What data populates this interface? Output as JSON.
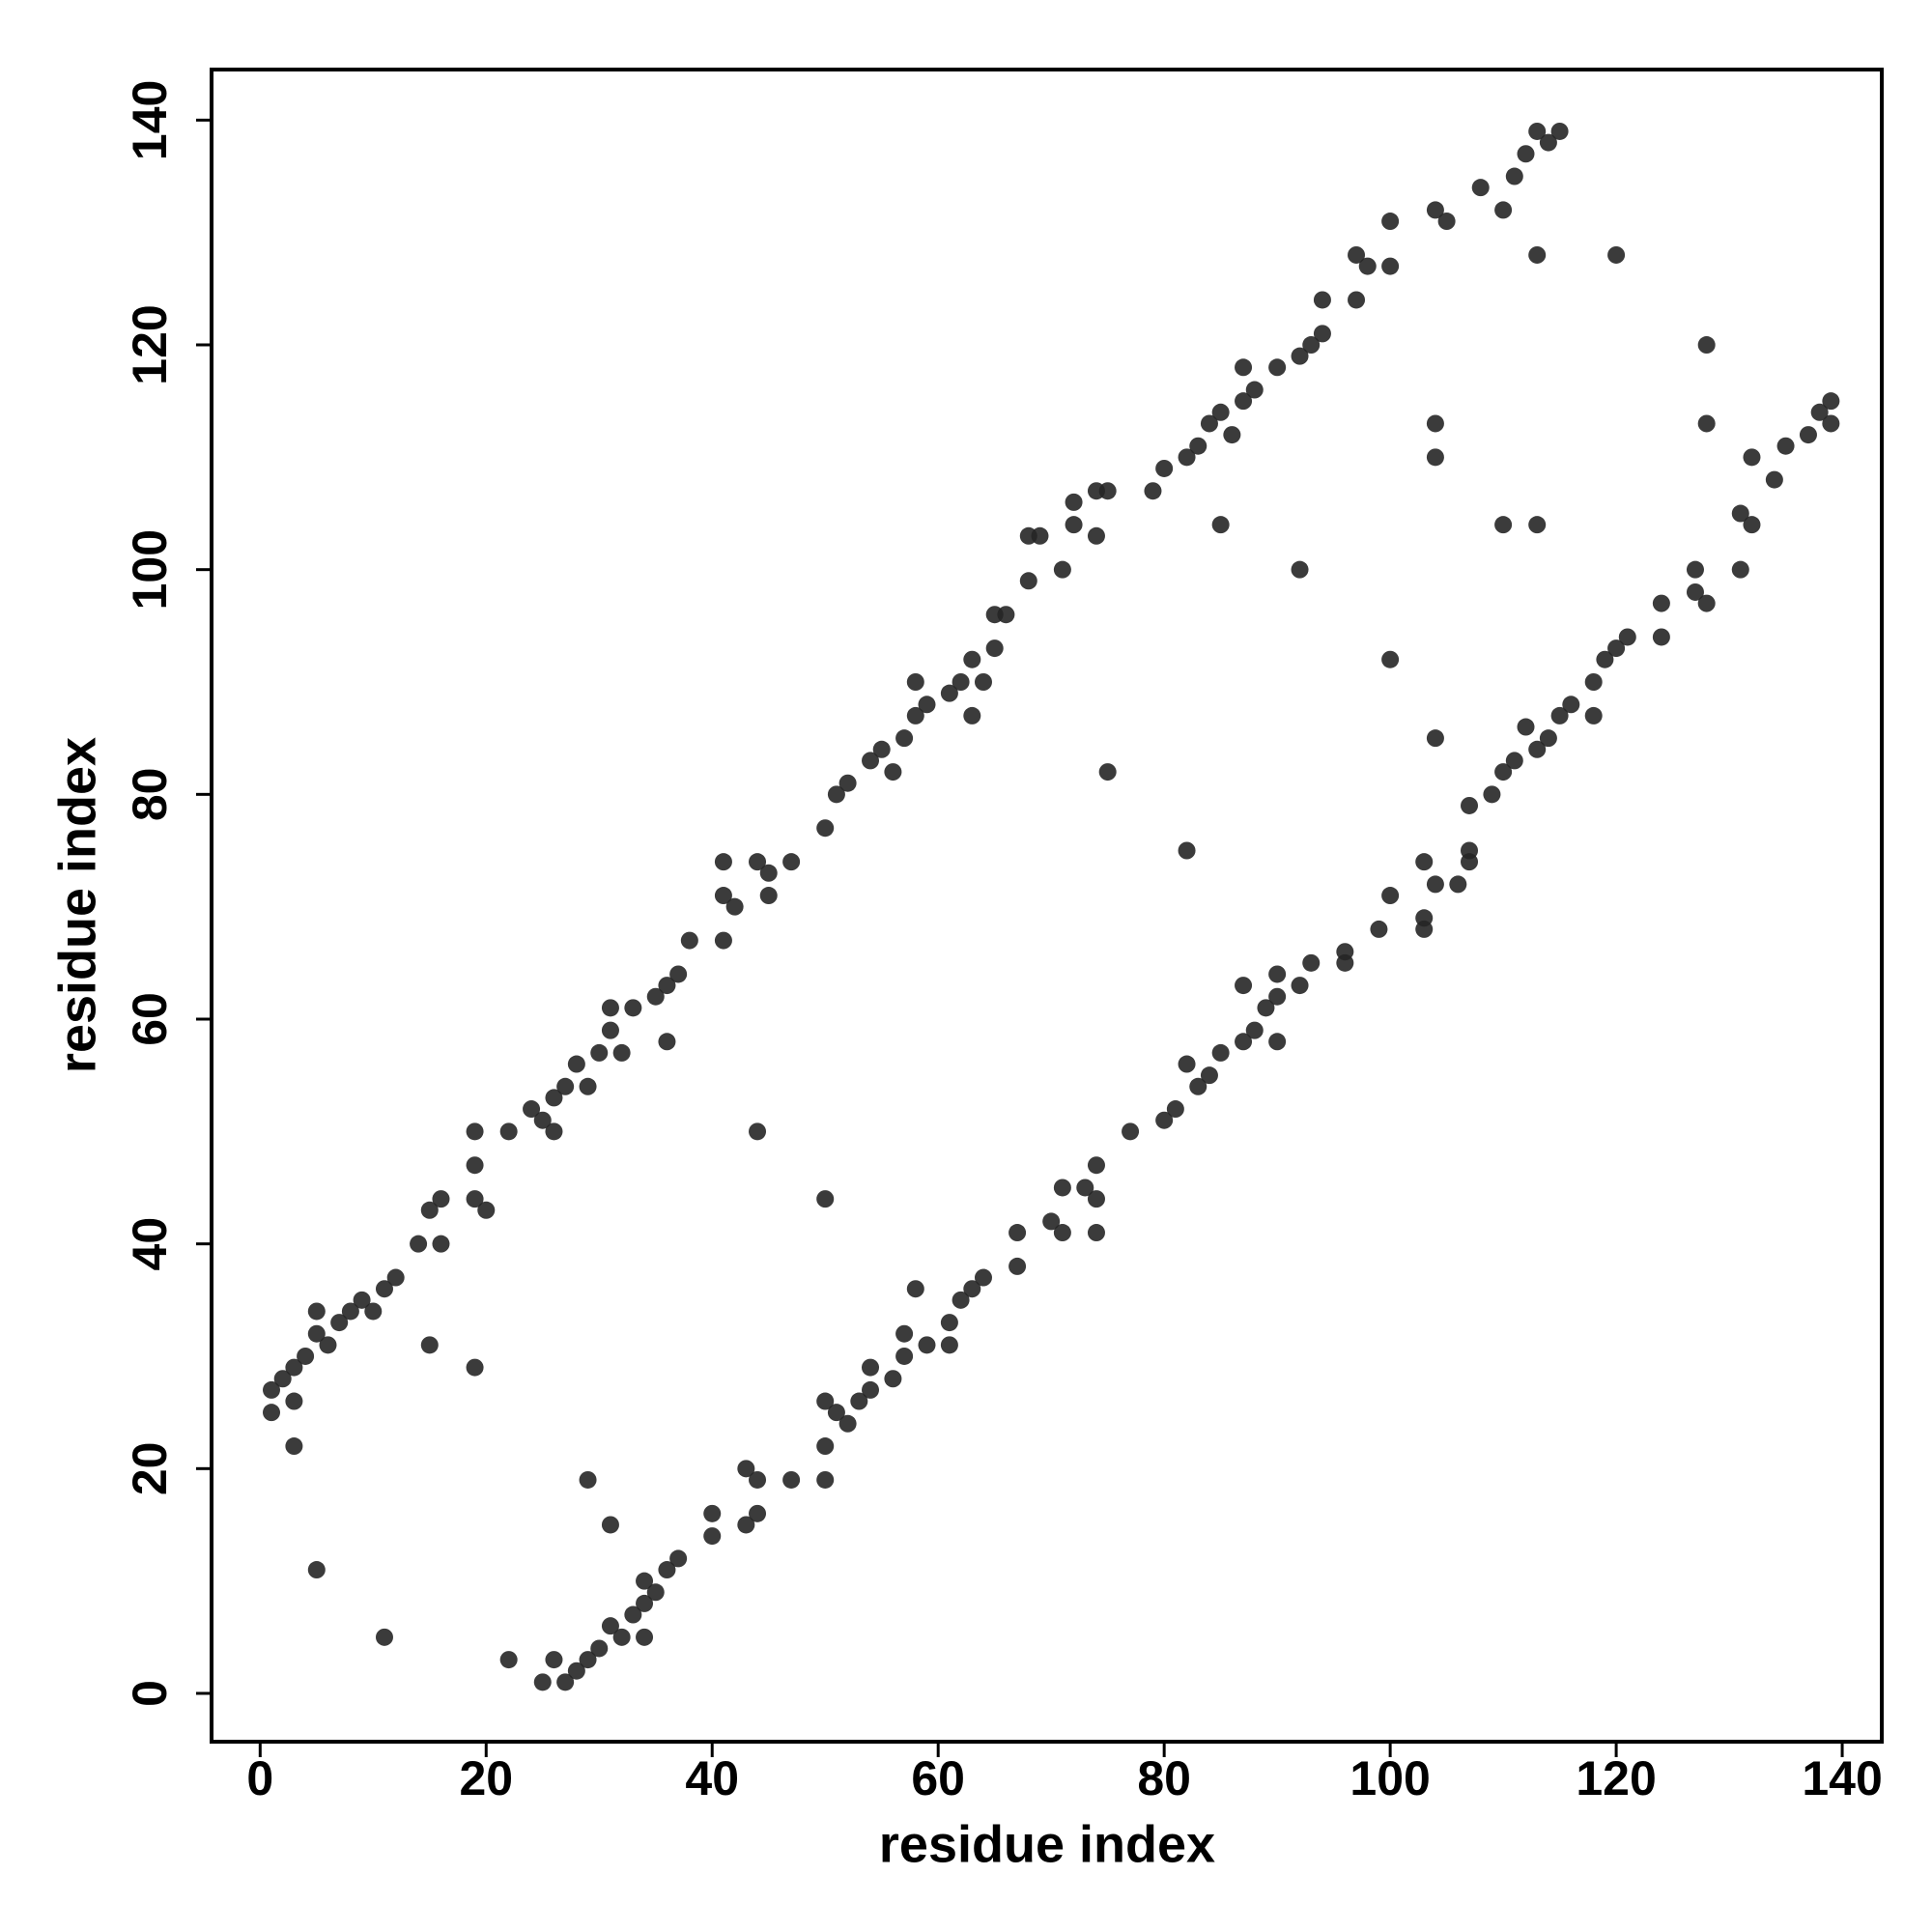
{
  "chart_data": {
    "type": "scatter",
    "x_label": "residue index",
    "y_label": "residue index",
    "xlim": [
      -4.3,
      143.5
    ],
    "ylim": [
      -4.3,
      144.5
    ],
    "xticks": [
      0,
      20,
      40,
      60,
      80,
      100,
      120,
      140
    ],
    "yticks": [
      0,
      20,
      40,
      60,
      80,
      100,
      120,
      140
    ],
    "color": "#262626",
    "x": [
      1,
      1,
      2,
      3,
      3,
      4,
      5,
      5,
      6,
      7,
      8,
      9,
      10,
      11,
      12,
      14,
      15,
      16,
      16,
      19,
      19,
      19,
      20,
      22,
      24,
      25,
      26,
      27,
      28,
      29,
      30,
      31,
      31,
      32,
      33,
      35,
      36,
      37,
      38,
      41,
      41,
      41,
      42,
      44,
      45,
      45,
      47,
      50,
      51,
      52,
      54,
      55,
      56,
      57,
      58,
      58,
      59,
      61,
      62,
      63,
      64,
      65,
      65,
      66,
      68,
      68,
      69,
      71,
      72,
      72,
      74,
      74,
      75,
      79,
      80,
      82,
      83,
      84,
      85,
      86,
      87,
      87,
      88,
      90,
      92,
      93,
      94,
      94,
      97,
      97,
      98,
      100,
      100,
      104,
      105,
      108,
      110,
      111,
      112,
      113,
      114,
      115,
      3,
      5,
      15,
      19,
      44,
      75,
      92,
      104,
      104,
      113,
      120,
      85,
      36,
      26,
      63,
      25,
      27,
      28,
      26,
      29,
      30,
      32,
      34,
      31,
      33,
      34,
      35,
      34,
      36,
      37,
      40,
      43,
      44,
      40,
      44,
      47,
      50,
      43,
      50,
      52,
      51,
      53,
      54,
      56,
      54,
      57,
      59,
      61,
      57,
      61,
      62,
      63,
      64,
      67,
      67,
      71,
      74,
      70,
      74,
      71,
      73,
      74,
      77,
      80,
      81,
      83,
      84,
      82,
      85,
      87,
      90,
      88,
      89,
      90,
      92,
      90,
      93,
      96,
      96,
      99,
      103,
      103,
      100,
      104,
      106,
      103,
      107,
      107,
      107,
      109,
      110,
      111,
      113,
      114,
      112,
      115,
      118,
      116,
      118,
      119,
      120,
      121,
      124,
      124,
      128,
      127,
      127,
      131,
      132,
      131,
      134,
      132,
      135,
      137,
      139,
      138,
      139,
      22,
      11,
      31,
      29,
      50,
      82,
      100,
      110,
      113,
      128,
      128,
      104,
      58,
      50,
      87
    ],
    "values": [
      25,
      27,
      28,
      26,
      29,
      30,
      32,
      34,
      31,
      33,
      34,
      35,
      34,
      36,
      37,
      40,
      43,
      44,
      40,
      44,
      47,
      50,
      43,
      50,
      52,
      51,
      53,
      54,
      56,
      54,
      57,
      59,
      61,
      57,
      61,
      62,
      63,
      64,
      67,
      67,
      71,
      74,
      70,
      74,
      71,
      73,
      74,
      77,
      80,
      81,
      83,
      84,
      82,
      85,
      87,
      90,
      88,
      89,
      90,
      92,
      90,
      93,
      96,
      96,
      99,
      103,
      103,
      100,
      104,
      106,
      103,
      107,
      107,
      107,
      109,
      110,
      111,
      113,
      114,
      112,
      115,
      118,
      116,
      118,
      119,
      120,
      121,
      124,
      124,
      128,
      127,
      127,
      131,
      132,
      131,
      134,
      132,
      135,
      137,
      139,
      138,
      139,
      22,
      11,
      31,
      29,
      50,
      82,
      100,
      110,
      113,
      128,
      128,
      104,
      58,
      50,
      87,
      1,
      1,
      2,
      3,
      3,
      4,
      5,
      5,
      6,
      7,
      8,
      9,
      10,
      11,
      12,
      14,
      15,
      16,
      16,
      19,
      19,
      19,
      20,
      22,
      24,
      25,
      26,
      27,
      28,
      29,
      30,
      31,
      31,
      32,
      33,
      35,
      36,
      37,
      38,
      41,
      41,
      41,
      42,
      44,
      45,
      45,
      47,
      50,
      51,
      52,
      54,
      55,
      56,
      57,
      58,
      58,
      59,
      61,
      62,
      63,
      64,
      65,
      65,
      66,
      68,
      68,
      69,
      71,
      72,
      72,
      74,
      74,
      75,
      79,
      80,
      82,
      83,
      84,
      85,
      86,
      87,
      87,
      88,
      90,
      92,
      93,
      94,
      94,
      97,
      97,
      98,
      100,
      100,
      104,
      105,
      108,
      110,
      111,
      112,
      113,
      114,
      115,
      3,
      5,
      15,
      19,
      44,
      75,
      92,
      104,
      104,
      113,
      120,
      85,
      36,
      26,
      63
    ]
  }
}
